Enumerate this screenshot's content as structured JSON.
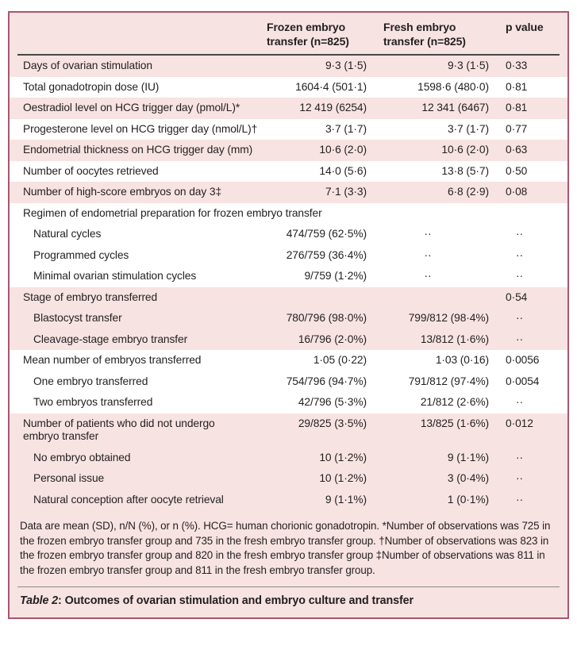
{
  "theme": {
    "page_bg": "#ffffff",
    "panel_bg": "#f7e3e2",
    "band_white": "#ffffff",
    "border_color": "#a9566f",
    "header_rule_color": "#474747",
    "footer_rule_color": "#8a8a8a",
    "text_color": "#231f20"
  },
  "header": {
    "columns": [
      {
        "label": ""
      },
      {
        "label": "Frozen embryo transfer (n=825)"
      },
      {
        "label": "Fresh embryo transfer (n=825)"
      },
      {
        "label": "p value"
      }
    ]
  },
  "rows": [
    {
      "label": "Days of ovarian stimulation",
      "indent": false,
      "band": "pink",
      "frozen": "9·3 (1·5)",
      "fresh": "9·3 (1·5)",
      "p": "0·33"
    },
    {
      "label": "Total gonadotropin dose (IU)",
      "indent": false,
      "band": "white",
      "frozen": "1604·4 (501·1)",
      "fresh": "1598·6 (480·0)",
      "p": "0·81"
    },
    {
      "label": "Oestradiol level on HCG trigger day (pmol/L)*",
      "indent": false,
      "band": "pink",
      "frozen": "12 419 (6254)",
      "fresh": "12 341 (6467)",
      "p": "0·81"
    },
    {
      "label": "Progesterone level on HCG trigger day (nmol/L)†",
      "indent": false,
      "band": "white",
      "frozen": "3·7 (1·7)",
      "fresh": "3·7 (1·7)",
      "p": "0·77"
    },
    {
      "label": "Endometrial thickness on HCG trigger day (mm)",
      "indent": false,
      "band": "pink",
      "frozen": "10·6 (2·0)",
      "fresh": "10·6 (2·0)",
      "p": "0·63"
    },
    {
      "label": "Number of oocytes retrieved",
      "indent": false,
      "band": "white",
      "frozen": "14·0 (5·6)",
      "fresh": "13·8 (5·7)",
      "p": "0·50"
    },
    {
      "label": "Number of high-score embryos on day 3‡",
      "indent": false,
      "band": "pink",
      "frozen": "7·1 (3·3)",
      "fresh": "6·8 (2·9)",
      "p": "0·08"
    },
    {
      "label": "Regimen of endometrial preparation for frozen embryo transfer",
      "indent": false,
      "band": "white",
      "section": true,
      "frozen": "",
      "fresh": "",
      "p": ""
    },
    {
      "label": "Natural cycles",
      "indent": true,
      "band": "white",
      "frozen": "474/759 (62·5%)",
      "fresh": "··",
      "p": "··"
    },
    {
      "label": "Programmed cycles",
      "indent": true,
      "band": "white",
      "frozen": "276/759 (36·4%)",
      "fresh": "··",
      "p": "··"
    },
    {
      "label": "Minimal ovarian stimulation cycles",
      "indent": true,
      "band": "white",
      "frozen": "9/759 (1·2%)",
      "fresh": "··",
      "p": "··"
    },
    {
      "label": "Stage of embryo transferred",
      "indent": false,
      "band": "pink",
      "section": true,
      "frozen": "",
      "fresh": "",
      "p": "0·54"
    },
    {
      "label": "Blastocyst transfer",
      "indent": true,
      "band": "pink",
      "frozen": "780/796 (98·0%)",
      "fresh": "799/812 (98·4%)",
      "p": "··"
    },
    {
      "label": "Cleavage-stage embryo transfer",
      "indent": true,
      "band": "pink",
      "frozen": "16/796 (2·0%)",
      "fresh": "13/812 (1·6%)",
      "p": "··"
    },
    {
      "label": "Mean number of embryos transferred",
      "indent": false,
      "band": "white",
      "frozen": "1·05 (0·22)",
      "fresh": "1·03 (0·16)",
      "p": "0·0056"
    },
    {
      "label": "One embryo transferred",
      "indent": true,
      "band": "white",
      "frozen": "754/796 (94·7%)",
      "fresh": "791/812 (97·4%)",
      "p": "0·0054"
    },
    {
      "label": "Two embryos transferred",
      "indent": true,
      "band": "white",
      "frozen": "42/796 (5·3%)",
      "fresh": "21/812 (2·6%)",
      "p": "··"
    },
    {
      "label": "Number of patients who did not undergo embryo transfer",
      "indent": false,
      "wrap": true,
      "band": "pink",
      "frozen": "29/825 (3·5%)",
      "fresh": "13/825 (1·6%)",
      "p": "0·012"
    },
    {
      "label": "No embryo obtained",
      "indent": true,
      "band": "pink",
      "frozen": "10 (1·2%)",
      "fresh": "9 (1·1%)",
      "p": "··"
    },
    {
      "label": "Personal issue",
      "indent": true,
      "band": "pink",
      "frozen": "10 (1·2%)",
      "fresh": "3 (0·4%)",
      "p": "··"
    },
    {
      "label": "Natural conception after oocyte retrieval",
      "indent": true,
      "band": "pink",
      "frozen": "9 (1·1%)",
      "fresh": "1 (0·1%)",
      "p": "··"
    }
  ],
  "footnote": "Data are mean (SD), n/N (%), or n (%). HCG= human chorionic gonadotropin. *Number of observations was 725 in the frozen embryo transfer group and 735 in the fresh embryo transfer group. †Number of observations was 823 in the frozen embryo transfer group and 820 in the fresh embryo transfer group ‡Number of observations was 811 in the frozen embryo transfer group and 811 in the fresh embryo transfer group.",
  "caption": {
    "label": "Table 2",
    "separator": ": ",
    "title": "Outcomes of ovarian stimulation and embryo culture and transfer"
  }
}
